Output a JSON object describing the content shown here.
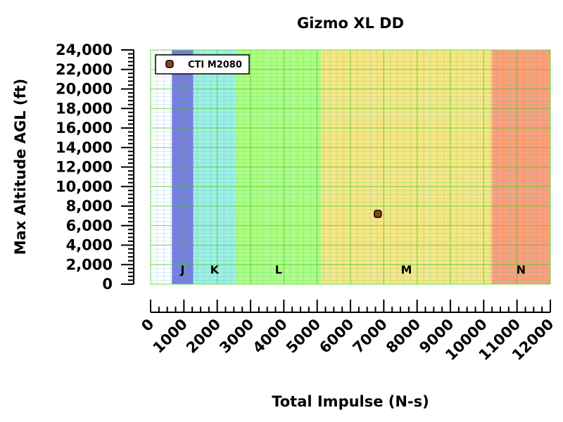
{
  "chart_data": {
    "type": "scatter",
    "title": "Gizmo XL DD",
    "xlabel": "Total Impulse (N-s)",
    "ylabel": "Max Altitude AGL (ft)",
    "xlim": [
      0,
      12000
    ],
    "ylim": [
      0,
      24000
    ],
    "x_ticks": [
      "0",
      "1000",
      "2000",
      "3000",
      "4000",
      "5000",
      "6000",
      "7000",
      "8000",
      "9000",
      "10000",
      "11000",
      "12000"
    ],
    "y_ticks": [
      "0",
      "2,000",
      "4,000",
      "6,000",
      "8,000",
      "10,000",
      "12,000",
      "14,000",
      "16,000",
      "18,000",
      "20,000",
      "22,000",
      "24,000"
    ],
    "grid": true,
    "legend_position": "top-left",
    "series": [
      {
        "name": "CTI M2080",
        "x": [
          6820
        ],
        "y": [
          7200
        ],
        "color": "#8b4513"
      }
    ],
    "bands": [
      {
        "label": "",
        "from": 0,
        "to": 640,
        "color": "#ffffff"
      },
      {
        "label": "J",
        "from": 640,
        "to": 1280,
        "color": "#7b7be0"
      },
      {
        "label": "K",
        "from": 1280,
        "to": 2560,
        "color": "#9ff0e0"
      },
      {
        "label": "L",
        "from": 2560,
        "to": 5120,
        "color": "#b0ff80"
      },
      {
        "label": "M",
        "from": 5120,
        "to": 10240,
        "color": "#f8e880"
      },
      {
        "label": "N",
        "from": 10240,
        "to": 12000,
        "color": "#ffa078"
      }
    ]
  }
}
